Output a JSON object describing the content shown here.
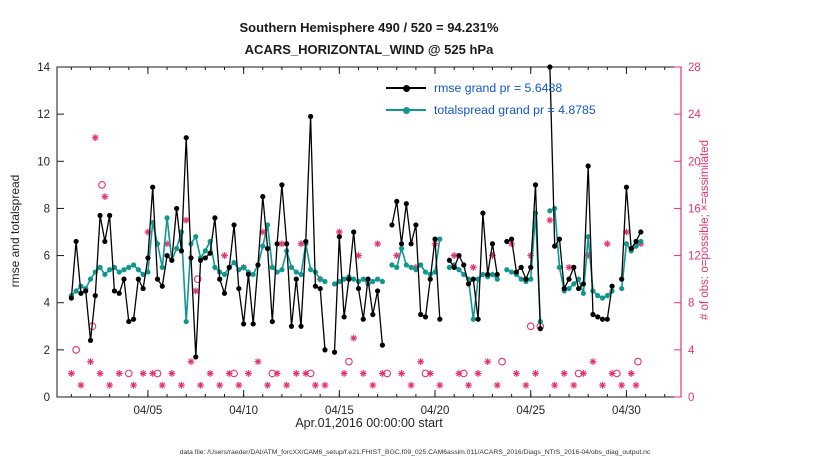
{
  "figure": {
    "title_line1": "Southern Hemisphere 490 / 520 = 94.231%",
    "title_line2": "ACARS_HORIZONTAL_WIND @ 525 hPa",
    "xlabel": "Apr.01,2016 00:00:00 start",
    "ylabel_left": "rmse and totalspread",
    "ylabel_right": "# of obs: o=possible; ×=assimilated",
    "footer": "data file: /Users/raeder/DAI/ATM_forcXX/CAM6_setup/f.e21.FHIST_BGC.f09_025.CAM6assim.011/ACARS_2016/Diags_NTrS_2016-04/obs_diag_output.nc",
    "colors": {
      "rmse": "#000000",
      "totalspread": "#0f9790",
      "obs": "#e8336e",
      "legend_text": "#1155d4",
      "axis": "#262626"
    },
    "stats": {
      "possible_total": "520",
      "assimilated_total": "490",
      "percent_assimilated": "94.231%",
      "rmse_grand": "5.6488",
      "totalspread_grand": "4.8785"
    }
  },
  "chart_data": {
    "type": "line",
    "title": "Southern Hemisphere 490 / 520 = 94.231% — ACARS_HORIZONTAL_WIND @ 525 hPa",
    "xlabel": "Apr.01,2016 00:00:00 start",
    "ylabel_left": "rmse and totalspread",
    "ylabel_right": "# of obs: o=possible; ×=assimilated",
    "xlim": [
      0.25,
      32.85
    ],
    "ylim_left": [
      0,
      14
    ],
    "ylim_right": [
      0,
      28
    ],
    "x_ticks": [
      {
        "v": 5,
        "label": "04/05"
      },
      {
        "v": 10,
        "label": "04/10"
      },
      {
        "v": 15,
        "label": "04/15"
      },
      {
        "v": 20,
        "label": "04/20"
      },
      {
        "v": 25,
        "label": "04/25"
      },
      {
        "v": 30,
        "label": "04/30"
      }
    ],
    "yticks_left": [
      0,
      2,
      4,
      6,
      8,
      10,
      12,
      14
    ],
    "yticks_right": [
      0,
      4,
      8,
      12,
      16,
      20,
      24,
      28
    ],
    "obs_color": "#e8336e",
    "series": [
      {
        "name": "rmse",
        "label": "rmse grand pr = 5.6488",
        "color": "#000000",
        "axis": "left",
        "x_start": 1.0,
        "x_step": 0.25,
        "y": [
          4.2,
          6.6,
          4.4,
          4.5,
          2.4,
          4.3,
          7.7,
          6.6,
          7.7,
          4.5,
          4.4,
          5.0,
          3.2,
          3.3,
          5.0,
          4.6,
          5.9,
          8.9,
          5.0,
          4.7,
          6.0,
          5.8,
          8.0,
          6.2,
          11.0,
          5.9,
          1.7,
          5.8,
          5.9,
          6.1,
          7.6,
          5.0,
          4.4,
          5.5,
          7.3,
          4.6,
          3.1,
          5.2,
          3.1,
          5.6,
          8.5,
          6.3,
          3.2,
          6.5,
          9.0,
          6.5,
          3.0,
          5.0,
          3.0,
          6.6,
          11.9,
          4.7,
          4.6,
          2.0,
          null,
          1.9,
          6.8,
          3.4,
          5.0,
          7.0,
          4.6,
          3.3,
          5.0,
          3.5,
          4.5,
          2.2,
          null,
          7.3,
          8.3,
          6.5,
          8.2,
          6.5,
          7.3,
          3.5,
          3.4,
          5.0,
          6.7,
          3.3,
          null,
          5.8,
          5.5,
          6.0,
          5.6,
          4.8,
          5.0,
          3.3,
          7.8,
          5.2,
          6.5,
          5.2,
          null,
          6.6,
          6.7,
          5.3,
          5.5,
          5.0,
          5.5,
          9.0,
          2.9,
          null,
          14.0,
          6.4,
          6.7,
          4.6,
          5.0,
          5.5,
          4.6,
          4.8,
          9.8,
          3.5,
          3.4,
          3.3,
          3.3,
          4.7,
          null,
          5.0,
          8.9,
          6.3,
          6.6,
          7.0
        ]
      },
      {
        "name": "totalspread",
        "label": "totalspread grand pr = 4.8785",
        "color": "#0f9790",
        "axis": "left",
        "x_start": 1.0,
        "x_step": 0.25,
        "y": [
          4.3,
          4.5,
          4.7,
          4.6,
          5.0,
          5.3,
          5.5,
          5.2,
          5.4,
          5.5,
          5.3,
          5.4,
          5.5,
          5.6,
          5.4,
          5.2,
          5.3,
          7.4,
          6.5,
          5.5,
          7.6,
          5.8,
          6.3,
          7.0,
          3.2,
          6.5,
          6.8,
          5.9,
          6.2,
          6.6,
          5.5,
          5.3,
          5.2,
          5.5,
          5.7,
          5.4,
          5.5,
          5.3,
          5.2,
          5.6,
          6.4,
          7.3,
          5.5,
          5.3,
          5.4,
          6.2,
          5.5,
          5.3,
          5.2,
          6.5,
          5.4,
          5.3,
          5.0,
          4.9,
          null,
          4.8,
          4.9,
          5.0,
          5.1,
          5.0,
          4.9,
          5.0,
          4.8,
          4.9,
          5.0,
          4.9,
          null,
          5.6,
          5.5,
          6.3,
          5.6,
          5.5,
          5.4,
          5.6,
          5.3,
          5.2,
          5.3,
          6.7,
          null,
          5.5,
          5.6,
          5.4,
          5.2,
          5.0,
          3.3,
          5.0,
          5.2,
          5.1,
          5.2,
          5.0,
          null,
          5.4,
          5.3,
          5.2,
          5.0,
          4.9,
          5.0,
          7.8,
          3.2,
          null,
          7.9,
          8.0,
          5.5,
          4.5,
          4.6,
          4.8,
          5.0,
          4.4,
          6.8,
          4.5,
          4.3,
          4.2,
          4.3,
          4.5,
          null,
          4.6,
          6.5,
          6.2,
          6.4,
          6.6
        ]
      }
    ],
    "scatter": [
      {
        "name": "possible",
        "marker": "circle",
        "axis": "right",
        "x": [
          1.25,
          2.1,
          2.6,
          4.0,
          5.5,
          7.6,
          9.5,
          11.5,
          13.5,
          15.5,
          17.5,
          19.5,
          21.5,
          23.5,
          25.0,
          25.5,
          27.5,
          29.5,
          30.6
        ],
        "y": [
          4,
          6,
          18,
          2,
          2,
          10,
          2,
          2,
          2,
          3,
          2,
          2,
          2,
          3,
          6,
          6,
          2,
          2,
          3
        ]
      },
      {
        "name": "assimilated",
        "marker": "asterisk",
        "axis": "right",
        "x": [
          1.0,
          1.5,
          2.0,
          2.5,
          3.0,
          3.5,
          4.25,
          4.75,
          5.25,
          5.75,
          6.25,
          6.75,
          7.25,
          7.75,
          8.25,
          8.75,
          9.25,
          9.75,
          10.25,
          10.75,
          11.25,
          11.75,
          12.25,
          12.75,
          13.25,
          13.75,
          14.25,
          15.25,
          15.75,
          16.25,
          16.75,
          17.25,
          18.25,
          18.75,
          19.25,
          19.75,
          20.25,
          21.25,
          21.75,
          22.25,
          22.75,
          23.25,
          24.25,
          24.75,
          25.25,
          26.25,
          26.75,
          27.25,
          27.75,
          28.25,
          28.75,
          29.25,
          29.75,
          30.25,
          30.5,
          2.25,
          2.75,
          5.0,
          6.0,
          7.0,
          7.5,
          9.0,
          10.0,
          11.0,
          12.0,
          13.0,
          14.0,
          15.0,
          16.0,
          17.0,
          18.0,
          19.0,
          20.0,
          21.0,
          22.0,
          23.0,
          24.0,
          25.0,
          26.0,
          27.0,
          28.0,
          29.0,
          30.0,
          30.75
        ],
        "y": [
          2,
          1,
          3,
          2,
          1,
          2,
          1,
          2,
          2,
          1,
          2,
          1,
          3,
          1,
          2,
          1,
          2,
          1,
          2,
          3,
          1,
          2,
          1,
          2,
          2,
          1,
          1,
          2,
          5,
          2,
          1,
          2,
          2,
          1,
          3,
          2,
          1,
          2,
          1,
          2,
          3,
          1,
          2,
          1,
          2,
          1,
          2,
          1,
          2,
          3,
          1,
          2,
          1,
          2,
          1,
          22,
          17,
          14,
          13,
          15,
          9,
          12,
          11,
          14,
          13,
          13,
          10,
          14,
          12,
          13,
          12,
          11,
          13,
          12,
          11,
          12,
          13,
          12,
          15,
          11,
          12,
          13,
          14,
          13
        ]
      }
    ],
    "legend_position": "upper-center-right",
    "grid": false
  },
  "legend": {
    "items": [
      {
        "label": "rmse grand pr = 5.6488"
      },
      {
        "label": "totalspread grand pr = 4.8785"
      }
    ]
  }
}
